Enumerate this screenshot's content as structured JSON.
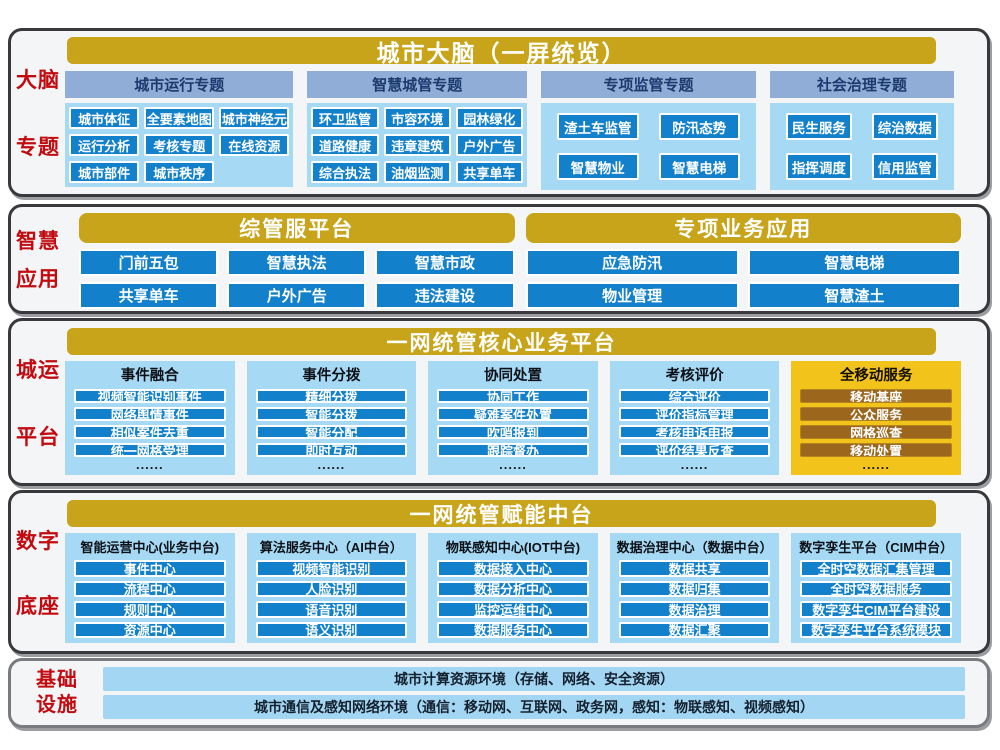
{
  "brain": {
    "side": [
      "大脑",
      "专题"
    ],
    "title": "城市大脑（一屏统览）",
    "groups": [
      {
        "header": "城市运行专题",
        "buttons": [
          "城市体征",
          "全要素地图",
          "城市神经元",
          "运行分析",
          "考核专题",
          "在线资源",
          "城市部件",
          "城市秩序"
        ]
      },
      {
        "header": "智慧城管专题",
        "buttons": [
          "环卫监管",
          "市容环境",
          "园林绿化",
          "道路健康",
          "违章建筑",
          "户外广告",
          "综合执法",
          "油烟监测",
          "共享单车"
        ]
      },
      {
        "header": "专项监管专题",
        "buttons": [
          "渣土车监管",
          "防汛态势",
          "智慧物业",
          "智慧电梯"
        ]
      },
      {
        "header": "社会治理专题",
        "buttons": [
          "民生服务",
          "综治数据",
          "指挥调度",
          "信用监管"
        ]
      }
    ]
  },
  "apps": {
    "side": [
      "智慧",
      "应用"
    ],
    "platforms": [
      {
        "title": "综管服平台",
        "buttons": [
          "门前五包",
          "智慧执法",
          "智慧市政",
          "共享单车",
          "户外广告",
          "违法建设"
        ]
      },
      {
        "title": "专项业务应用",
        "buttons": [
          "应急防汛",
          "智慧电梯",
          "物业管理",
          "智慧渣土"
        ]
      }
    ]
  },
  "core": {
    "side": [
      "城运",
      "平台"
    ],
    "title": "一网统管核心业务平台",
    "more": "......",
    "columns": [
      {
        "header": "事件融合",
        "buttons": [
          "视频智能识别事件",
          "网络舆情事件",
          "相似案件去重",
          "统一网格受理"
        ]
      },
      {
        "header": "事件分拨",
        "buttons": [
          "精细分拨",
          "智能分拨",
          "智能分配",
          "即时互动"
        ]
      },
      {
        "header": "协同处置",
        "buttons": [
          "协同工作",
          "疑难案件处置",
          "吹哨报到",
          "跟踪督办"
        ]
      },
      {
        "header": "考核评价",
        "buttons": [
          "综合评价",
          "评价指标管理",
          "考核申诉申报",
          "评价结果反查"
        ]
      },
      {
        "header": "全移动服务",
        "accent": true,
        "buttons": [
          "移动基座",
          "公众服务",
          "网格巡查",
          "移动处置"
        ]
      }
    ]
  },
  "enable": {
    "side": [
      "数字",
      "底座"
    ],
    "title": "一网统管赋能中台",
    "columns": [
      {
        "header": "智能运营中心(业务中台)",
        "buttons": [
          "事件中心",
          "流程中心",
          "规则中心",
          "资源中心"
        ]
      },
      {
        "header": "算法服务中心（AI中台）",
        "buttons": [
          "视频智能识别",
          "人脸识别",
          "语音识别",
          "语义识别"
        ]
      },
      {
        "header": "物联感知中心(IOT中台)",
        "buttons": [
          "数据接入中心",
          "数据分析中心",
          "监控运维中心",
          "数据服务中心"
        ]
      },
      {
        "header": "数据治理中心（数据中台）",
        "buttons": [
          "数据共享",
          "数据归集",
          "数据治理",
          "数据汇聚"
        ]
      },
      {
        "header": "数字孪生平台（CIM中台）",
        "buttons": [
          "全时空数据汇集管理",
          "全时空数据服务",
          "数字孪生CIM平台建设",
          "数字孪生平台系统模块"
        ]
      }
    ]
  },
  "infra": {
    "side": [
      "基础",
      "设施"
    ],
    "bars": [
      "城市计算资源环境（存储、网络、安全资源）",
      "城市通信及感知网络环境（通信：移动网、互联网、政务网，感知：物联感知、视频感知）"
    ]
  },
  "colors": {
    "gold_header": "#c8a41b",
    "accent_panel_gold": "#f2c31b",
    "accent_button_brown": "#9c671d",
    "button_blue": "#1280cb",
    "panel_light_blue": "#a6d9f4",
    "subheader_blue": "#8fadd6",
    "side_label_red": "#c20b10"
  }
}
